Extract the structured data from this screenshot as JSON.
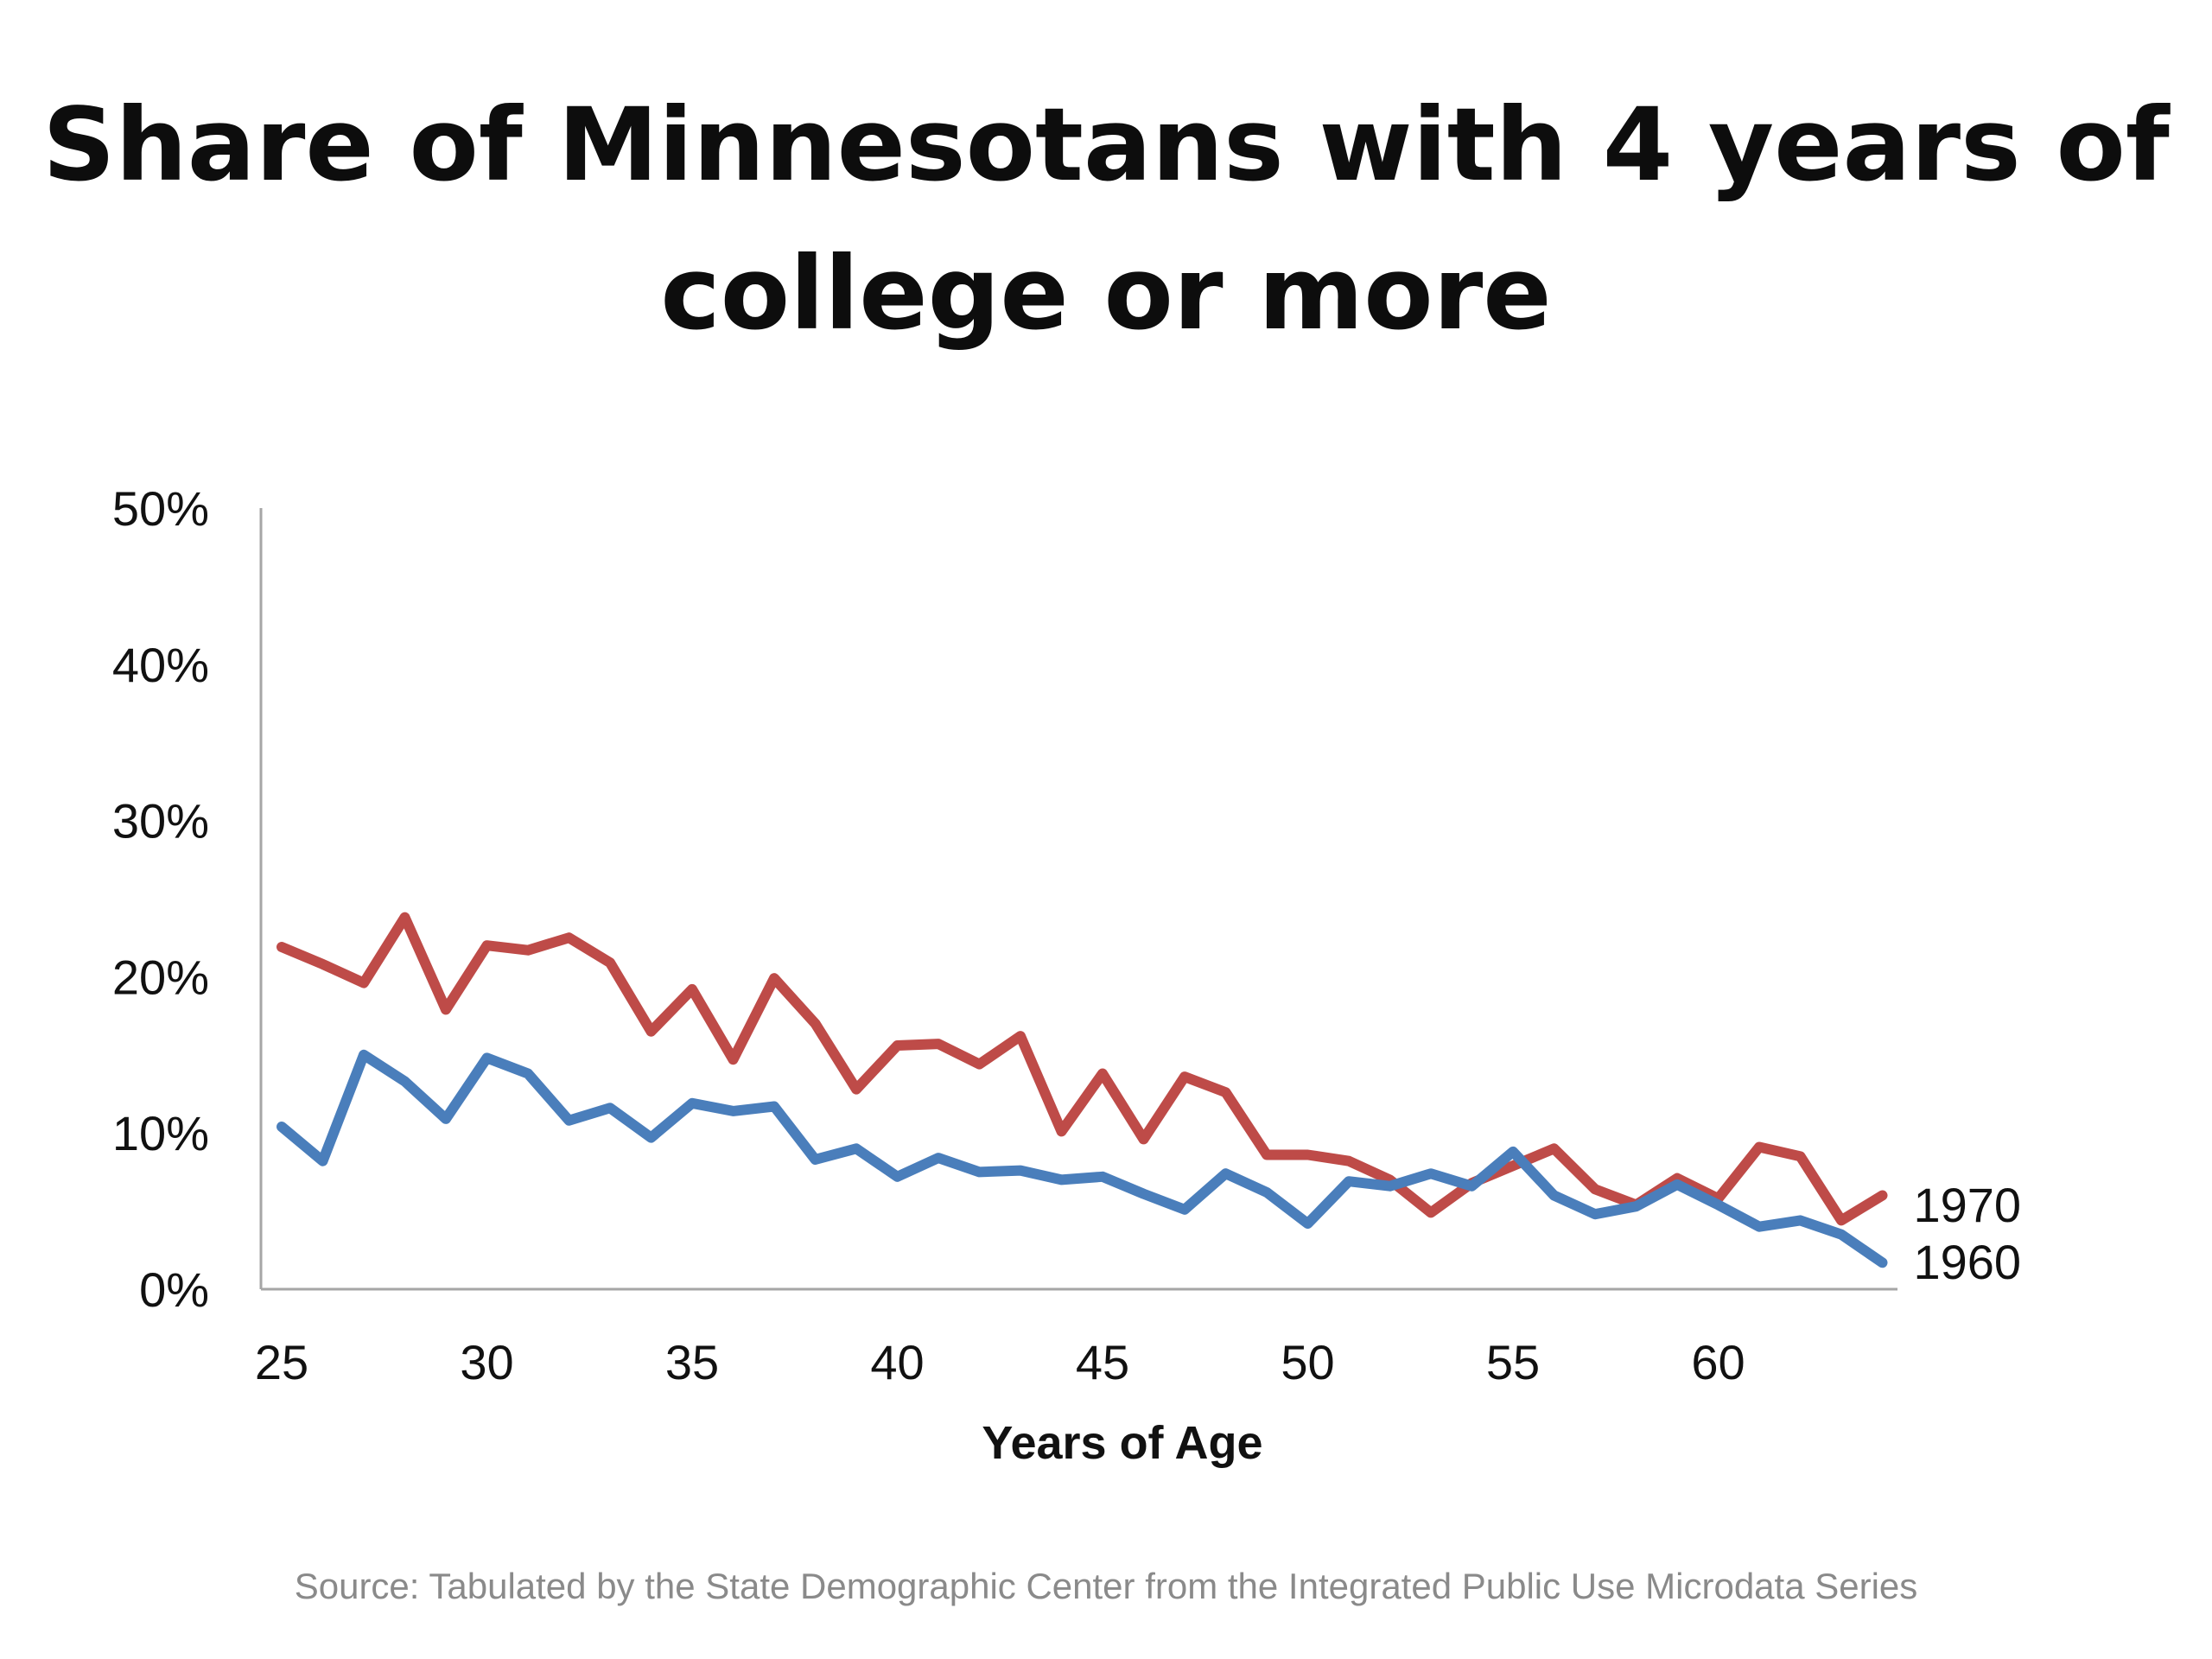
{
  "title_lines": [
    "Share of Minnesotans with 4 years of",
    "college or more"
  ],
  "source": "Source: Tabulated by the State Demographic Center from the Integrated Public Use Microdata Series",
  "colors": {
    "series_1960": "#4a7ebb",
    "series_1970": "#be4b48",
    "axis": "#a6a6a6"
  },
  "chart_data": {
    "type": "line",
    "title": "Share of Minnesotans with 4 years of college or more",
    "xlabel": "Years of Age",
    "ylabel": "",
    "ylim": [
      0,
      50
    ],
    "xlim": [
      25,
      64
    ],
    "y_ticks": [
      0,
      10,
      20,
      30,
      40,
      50
    ],
    "y_tick_labels": [
      "0%",
      "10%",
      "20%",
      "30%",
      "40%",
      "50%"
    ],
    "x_ticks": [
      25,
      30,
      35,
      40,
      45,
      50,
      55,
      60
    ],
    "x_tick_labels": [
      "25",
      "30",
      "35",
      "40",
      "45",
      "50",
      "55",
      "60"
    ],
    "grid": false,
    "legend": "end-of-line labels",
    "x": [
      25,
      26,
      27,
      28,
      29,
      30,
      31,
      32,
      33,
      34,
      35,
      36,
      37,
      38,
      39,
      40,
      41,
      42,
      43,
      44,
      45,
      46,
      47,
      48,
      49,
      50,
      51,
      52,
      53,
      54,
      55,
      56,
      57,
      58,
      59,
      60,
      61,
      62,
      63,
      64
    ],
    "series": [
      {
        "name": "1970",
        "color": "#be4b48",
        "values": [
          21.9,
          20.8,
          19.6,
          23.8,
          17.9,
          22.0,
          21.7,
          22.5,
          20.9,
          16.5,
          19.2,
          14.7,
          19.9,
          17.0,
          12.8,
          15.6,
          15.7,
          14.4,
          16.2,
          10.1,
          13.8,
          9.6,
          13.6,
          12.6,
          8.6,
          8.6,
          8.2,
          7.0,
          4.9,
          6.8,
          7.9,
          9.0,
          6.4,
          5.4,
          7.1,
          5.8,
          9.1,
          8.5,
          4.4,
          6.0
        ]
      },
      {
        "name": "1960",
        "color": "#4a7ebb",
        "values": [
          10.4,
          8.2,
          15.0,
          13.3,
          10.9,
          14.8,
          13.8,
          10.8,
          11.6,
          9.7,
          11.9,
          11.4,
          11.7,
          8.3,
          9.0,
          7.2,
          8.4,
          7.5,
          7.6,
          7.0,
          7.2,
          6.1,
          5.1,
          7.4,
          6.2,
          4.2,
          6.9,
          6.6,
          7.4,
          6.6,
          8.8,
          6.0,
          4.8,
          5.3,
          6.7,
          5.4,
          4.0,
          4.4,
          3.5,
          1.7
        ]
      }
    ]
  }
}
